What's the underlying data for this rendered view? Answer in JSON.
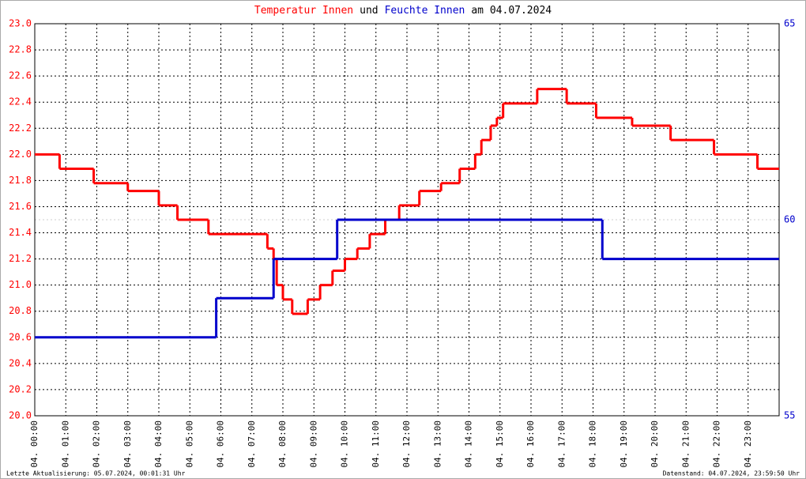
{
  "chart_data": {
    "type": "step-line",
    "title": [
      "Temperatur Innen",
      "und",
      "Feuchte Innen",
      "am 04.07.2024"
    ],
    "title_colors": [
      "#ff0000",
      "#000000",
      "#0000cc",
      "#000000"
    ],
    "footer_left": "Letzte Aktualisierung: 05.07.2024, 00:01:31 Uhr",
    "footer_right": "Datenstand: 04.07.2024, 23:59:50 Uhr",
    "xlim": [
      0,
      24
    ],
    "xticks": [
      {
        "value": 0,
        "label": "04. 00:00"
      },
      {
        "value": 1,
        "label": "04. 01:00"
      },
      {
        "value": 2,
        "label": "04. 02:00"
      },
      {
        "value": 3,
        "label": "04. 03:00"
      },
      {
        "value": 4,
        "label": "04. 04:00"
      },
      {
        "value": 5,
        "label": "04. 05:00"
      },
      {
        "value": 6,
        "label": "04. 06:00"
      },
      {
        "value": 7,
        "label": "04. 07:00"
      },
      {
        "value": 8,
        "label": "04. 08:00"
      },
      {
        "value": 9,
        "label": "04. 09:00"
      },
      {
        "value": 10,
        "label": "04. 10:00"
      },
      {
        "value": 11,
        "label": "04. 11:00"
      },
      {
        "value": 12,
        "label": "04. 12:00"
      },
      {
        "value": 13,
        "label": "04. 13:00"
      },
      {
        "value": 14,
        "label": "04. 14:00"
      },
      {
        "value": 15,
        "label": "04. 15:00"
      },
      {
        "value": 16,
        "label": "04. 16:00"
      },
      {
        "value": 17,
        "label": "04. 17:00"
      },
      {
        "value": 18,
        "label": "04. 18:00"
      },
      {
        "value": 19,
        "label": "04. 19:00"
      },
      {
        "value": 20,
        "label": "04. 20:00"
      },
      {
        "value": 21,
        "label": "04. 21:00"
      },
      {
        "value": 22,
        "label": "04. 22:00"
      },
      {
        "value": 23,
        "label": "04. 23:00"
      }
    ],
    "ylim": [
      20,
      23
    ],
    "yticks": [
      {
        "value": 20,
        "label": "20.0"
      },
      20.2,
      20.4,
      20.6,
      20.8,
      {
        "value": 21,
        "label": "21.0"
      },
      21.2,
      21.4,
      21.6,
      21.8,
      {
        "value": 22,
        "label": "22.0"
      },
      22.2,
      22.4,
      22.6,
      22.8,
      {
        "value": 23,
        "label": "23.0"
      }
    ],
    "y2lim": [
      55,
      65
    ],
    "y2ticks": [
      55,
      60,
      65
    ],
    "grid": true,
    "series": [
      {
        "name": "Temperatur Innen",
        "color": "#ff0000",
        "x": [
          0,
          0.8,
          1.9,
          3.0,
          4.0,
          4.6,
          5.6,
          7.5,
          7.7,
          7.8,
          8.0,
          8.3,
          8.8,
          9.2,
          9.6,
          10.0,
          10.4,
          10.8,
          11.3,
          11.75,
          12.4,
          13.1,
          13.7,
          14.2,
          14.4,
          14.7,
          14.9,
          15.1,
          16.2,
          17.15,
          18.1,
          19.26,
          20.5,
          21.9,
          23.3
        ],
        "values": [
          22.0,
          21.89,
          21.78,
          21.72,
          21.61,
          21.5,
          21.39,
          21.28,
          21.2,
          21.0,
          20.89,
          20.78,
          20.89,
          21.0,
          21.11,
          21.2,
          21.28,
          21.39,
          21.5,
          21.61,
          21.72,
          21.78,
          21.89,
          22.0,
          22.11,
          22.22,
          22.28,
          22.39,
          22.5,
          22.39,
          22.28,
          22.22,
          22.11,
          22.0,
          21.89
        ]
      },
      {
        "name": "Feuchte Innen",
        "color": "#0000cc",
        "axis": "y2",
        "x": [
          0,
          5.85,
          7.7,
          9.75,
          18.3
        ],
        "values": [
          57,
          58,
          59,
          60,
          59
        ]
      }
    ]
  }
}
